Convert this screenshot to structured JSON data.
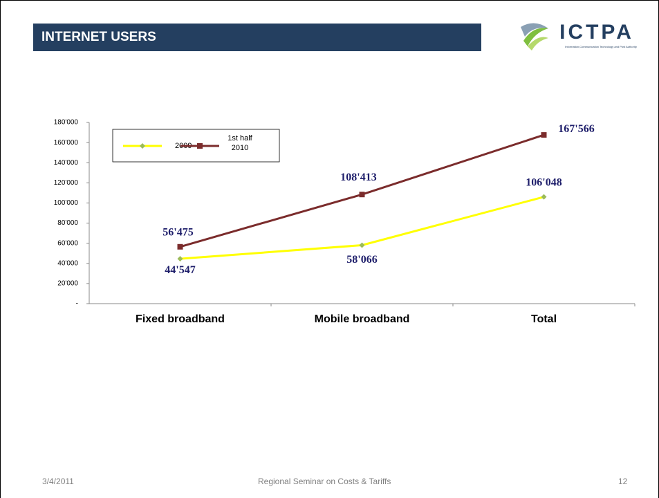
{
  "header": {
    "title": "INTERNET USERS",
    "logo": "ICTPA",
    "logo_subtitle": "Information,Communication Technology and Post Authority"
  },
  "chart_data": {
    "type": "line",
    "categories": [
      "Fixed broadband",
      "Mobile broadband",
      "Total"
    ],
    "series": [
      {
        "name": "2009",
        "color": "#ffff00",
        "values": [
          44547,
          58066,
          106048
        ],
        "value_labels": [
          "44'547",
          "58'066",
          "106'048"
        ]
      },
      {
        "name": "1st half 2010",
        "color": "#7b2c2c",
        "values": [
          56475,
          108413,
          167566
        ],
        "value_labels": [
          "56'475",
          "108'413",
          "167'566"
        ]
      }
    ],
    "ylim": [
      0,
      180000
    ],
    "yticks": [
      {
        "value": 0,
        "label": "-"
      },
      {
        "value": 20000,
        "label": "20'000"
      },
      {
        "value": 40000,
        "label": "40'000"
      },
      {
        "value": 60000,
        "label": "60'000"
      },
      {
        "value": 80000,
        "label": "80'000"
      },
      {
        "value": 100000,
        "label": "100'000"
      },
      {
        "value": 120000,
        "label": "120'000"
      },
      {
        "value": 140000,
        "label": "140'000"
      },
      {
        "value": 160000,
        "label": "160'000"
      },
      {
        "value": 180000,
        "label": "180'000"
      }
    ],
    "grid": false,
    "legend": "upper left"
  },
  "footer": {
    "date": "3/4/2011",
    "event": "Regional Seminar on Costs & Tariffs",
    "page": "12"
  }
}
